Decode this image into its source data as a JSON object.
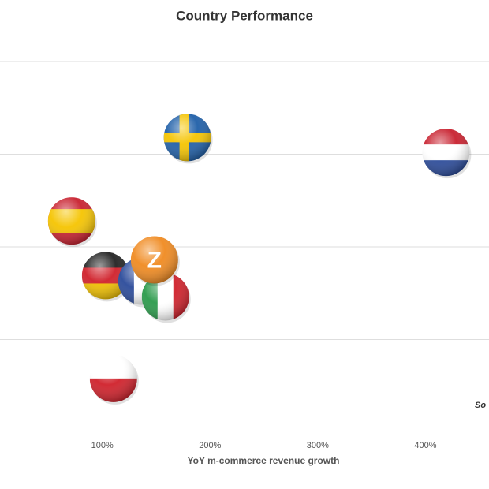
{
  "chart_data": {
    "type": "scatter",
    "title": "Country Performance",
    "x_label": "YoY m-commerce revenue growth",
    "annotation": "So",
    "xlim": [
      5,
      459
    ],
    "ylim": [
      0,
      4.3
    ],
    "xticks": [
      {
        "value": 100,
        "label": "100%"
      },
      {
        "value": 200,
        "label": "200%"
      },
      {
        "value": 300,
        "label": "300%"
      },
      {
        "value": 400,
        "label": "400%"
      }
    ],
    "yticks": [
      1,
      2,
      3,
      4
    ],
    "grid": true,
    "points": [
      {
        "x": 179,
        "y": 3.18,
        "flag": {
          "style": "cross",
          "colors": [
            "#1f5fa8",
            "#f5c400"
          ]
        }
      },
      {
        "x": 419,
        "y": 3.02,
        "flag": {
          "style": "h",
          "colors": [
            "#c8202e",
            "#ffffff",
            "#2a4a9a"
          ]
        }
      },
      {
        "x": 71.5,
        "y": 2.28,
        "flag": {
          "style": "h3",
          "colors": [
            "#c8202e",
            "#f5c400",
            "#c8202e"
          ]
        }
      },
      {
        "x": 103,
        "y": 1.69,
        "flag": {
          "style": "h",
          "colors": [
            "#222222",
            "#d0202a",
            "#f0c000"
          ]
        }
      },
      {
        "x": 136.7,
        "y": 1.63,
        "flag": {
          "style": "v",
          "colors": [
            "#2a4a9a",
            "#ffffff",
            "#d0202a"
          ]
        }
      },
      {
        "x": 158.6,
        "y": 1.46,
        "flag": {
          "style": "v",
          "colors": [
            "#2a9a4a",
            "#ffffff",
            "#d0202a"
          ]
        }
      },
      {
        "x": 148.4,
        "y": 1.86,
        "flag": {
          "style": "text",
          "colors": [
            "#f08a20",
            "#ffffff"
          ]
        },
        "label": "Z"
      },
      {
        "x": 110.3,
        "y": 0.58,
        "flag": {
          "style": "h",
          "colors": [
            "#ffffff",
            "#d0202a"
          ]
        }
      }
    ]
  }
}
